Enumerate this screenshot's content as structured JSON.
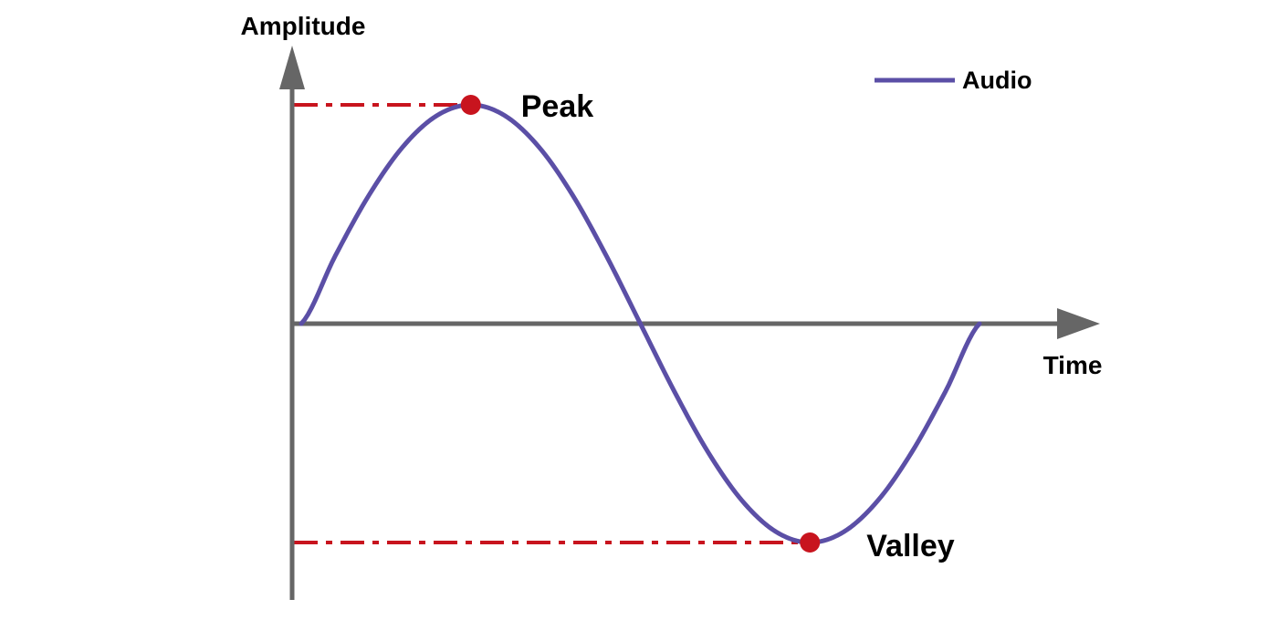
{
  "chart_data": {
    "type": "line",
    "title": "",
    "xlabel": "Time",
    "ylabel": "Amplitude",
    "xlim": [
      0,
      1
    ],
    "ylim": [
      -1,
      1
    ],
    "grid": false,
    "legend_position": "top-right",
    "series": [
      {
        "name": "Audio",
        "color": "#5b4fa6",
        "x": [
          0,
          0.05,
          0.1,
          0.15,
          0.2,
          0.25,
          0.3,
          0.35,
          0.4,
          0.45,
          0.5,
          0.55,
          0.6,
          0.65,
          0.7,
          0.75,
          0.8,
          0.85,
          0.9,
          0.95,
          1
        ],
        "y": [
          0,
          0.309,
          0.588,
          0.809,
          0.951,
          1,
          0.951,
          0.809,
          0.588,
          0.309,
          0,
          -0.309,
          -0.588,
          -0.809,
          -0.951,
          -1,
          -0.951,
          -0.809,
          -0.588,
          -0.309,
          0
        ]
      }
    ],
    "annotations": [
      {
        "label": "Peak",
        "x": 0.25,
        "y": 1,
        "color": "#c8141e"
      },
      {
        "label": "Valley",
        "x": 0.75,
        "y": -1,
        "color": "#c8141e"
      }
    ],
    "axis_color": "#666666",
    "reference_line_color": "#c8141e"
  }
}
